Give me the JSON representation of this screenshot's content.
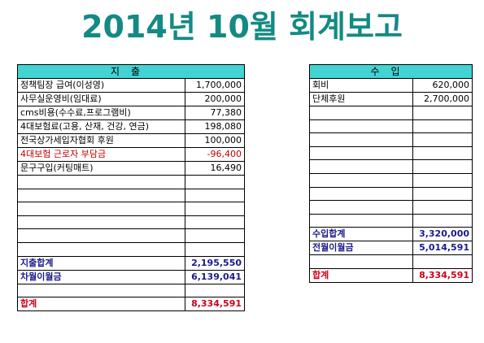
{
  "title": "2014년 10월 회계보고",
  "expense": {
    "header": "지출",
    "rows": [
      {
        "label": "정책팀장 급여(이성영)",
        "amount": "1,700,000"
      },
      {
        "label": "사무실운영비(임대료)",
        "amount": "200,000"
      },
      {
        "label": "cms비용(수수료,프로그램비)",
        "amount": "77,380"
      },
      {
        "label": "4대보험료(고용, 산재, 건강, 연금)",
        "amount": "198,080"
      },
      {
        "label": "전국상가세입자협회 후원",
        "amount": "100,000"
      },
      {
        "label": "4대보험 근로자 부담금",
        "amount": "-96,400"
      },
      {
        "label": "문구구입(커팅매트)",
        "amount": "16,490"
      }
    ],
    "subtotal_label": "지출합계",
    "subtotal": "2,195,550",
    "carryover_label": "차월이월금",
    "carryover": "6,139,041",
    "total_label": "합계",
    "total": "8,334,591"
  },
  "income": {
    "header": "수입",
    "rows": [
      {
        "label": "회비",
        "amount": "620,000"
      },
      {
        "label": "단체후원",
        "amount": "2,700,000"
      }
    ],
    "subtotal_label": "수입합계",
    "subtotal": "3,320,000",
    "carryover_label": "전월이월금",
    "carryover": "5,014,591",
    "total_label": "합계",
    "total": "8,334,591"
  }
}
